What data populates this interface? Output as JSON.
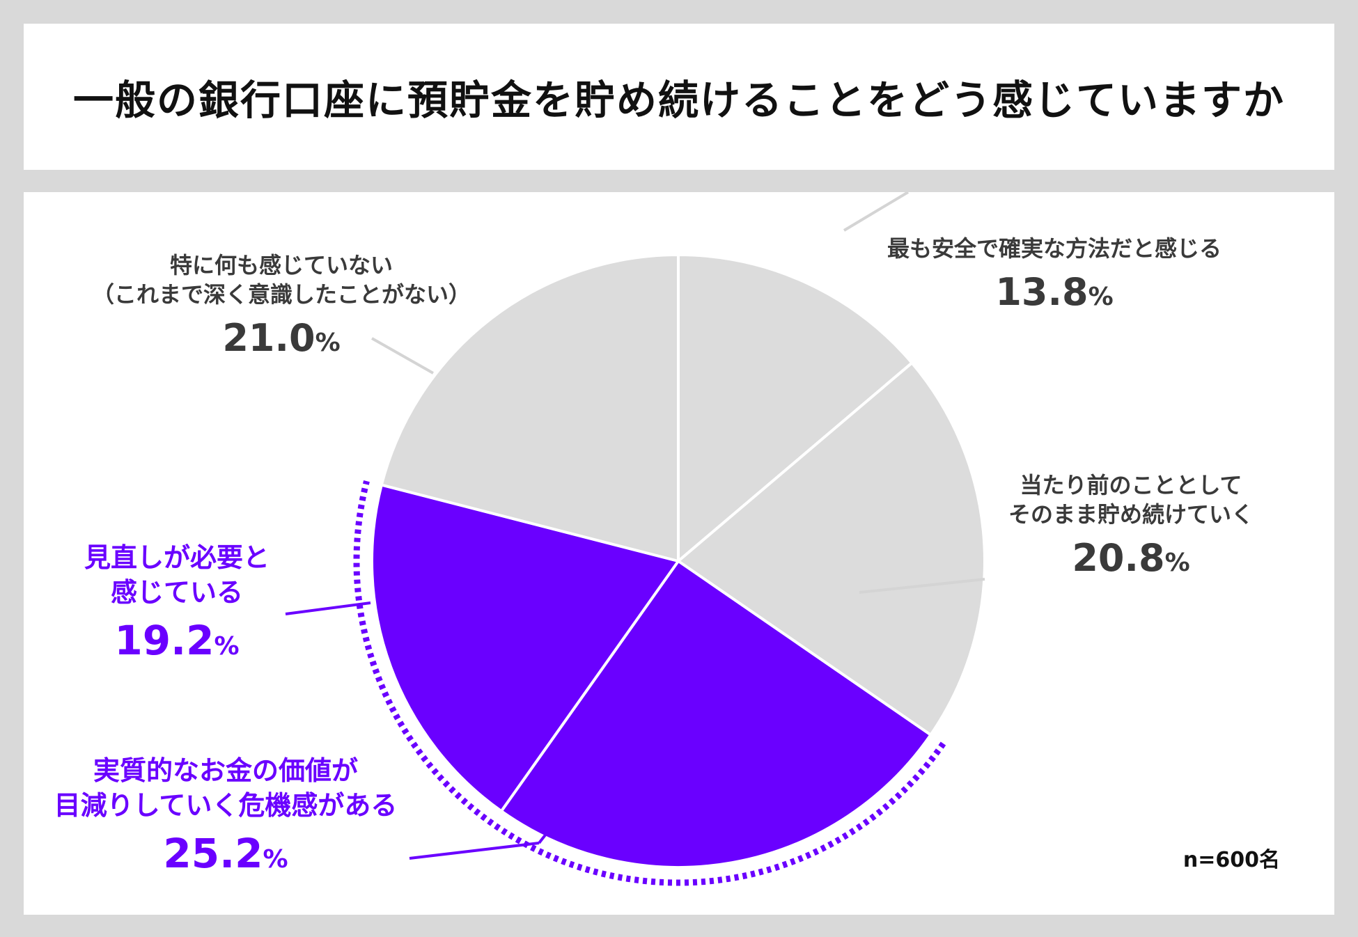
{
  "title": "一般の銀行口座に預貯金を貯め続けることをどう感じていますか",
  "sample_note": "n=600名",
  "colors": {
    "grey": "#dcdcdc",
    "accent": "#6a00ff",
    "leader_grey": "#d4d4d4",
    "text": "#3a3a3a"
  },
  "chart_data": {
    "type": "pie",
    "title": "一般の銀行口座に預貯金を貯め続けることをどう感じていますか",
    "unit": "%",
    "start": "12 o'clock",
    "direction": "clockwise",
    "slices": [
      {
        "label_lines": [
          "最も安全で確実な方法だと感じる"
        ],
        "value": 13.8,
        "value_text": "13.8",
        "highlight": false,
        "color": "#dcdcdc"
      },
      {
        "label_lines": [
          "当たり前のこととして",
          "そのまま貯め続けていく"
        ],
        "value": 20.8,
        "value_text": "20.8",
        "highlight": false,
        "color": "#dcdcdc"
      },
      {
        "label_lines": [
          "実質的なお金の価値が",
          "目減りしていく危機感がある"
        ],
        "value": 25.2,
        "value_text": "25.2",
        "highlight": true,
        "color": "#6a00ff"
      },
      {
        "label_lines": [
          "見直しが必要と",
          "感じている"
        ],
        "value": 19.2,
        "value_text": "19.2",
        "highlight": true,
        "color": "#6a00ff"
      },
      {
        "label_lines": [
          "特に何も感じていない",
          "（これまで深く意識したことがない）"
        ],
        "value": 21.0,
        "value_text": "21.0",
        "highlight": false,
        "color": "#dcdcdc"
      }
    ],
    "percent_sign": "%"
  }
}
